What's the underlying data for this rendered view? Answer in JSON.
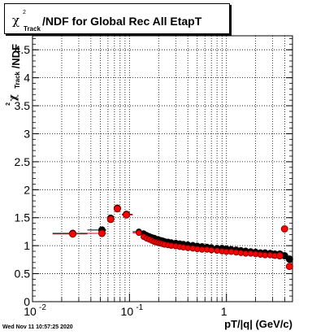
{
  "chart_data": {
    "type": "scatter",
    "title": "/NDF for Global Rec All EtapT",
    "title_symbol": "χ",
    "title_sup": "2",
    "title_sub": "Track",
    "xlabel": "pT/|q| (GeV/c)",
    "ylabel": "/NDF",
    "ylabel_symbol": "χ",
    "ylabel_sup": "2",
    "ylabel_sub": "Track",
    "xscale": "log",
    "xlim": [
      0.01,
      4.8
    ],
    "ylim": [
      0,
      4.75
    ],
    "grid": true,
    "x_ticks": [
      {
        "value": 0.01,
        "base": "10",
        "exp": "-2"
      },
      {
        "value": 0.1,
        "base": "10",
        "exp": "-1"
      },
      {
        "value": 1,
        "base": "1",
        "exp": ""
      }
    ],
    "y_ticks": [
      "0",
      "0.5",
      "1",
      "1.5",
      "2",
      "2.5",
      "3",
      "3.5",
      "4",
      "4.5"
    ],
    "series": [
      {
        "color": "#000000",
        "x": [
          0.026,
          0.052,
          0.064,
          0.075,
          0.093,
          0.125,
          0.14,
          0.15,
          0.16,
          0.17,
          0.18,
          0.19,
          0.2,
          0.21,
          0.22,
          0.23,
          0.25,
          0.27,
          0.3,
          0.33,
          0.36,
          0.4,
          0.45,
          0.5,
          0.56,
          0.63,
          0.7,
          0.8,
          0.9,
          1.0,
          1.12,
          1.26,
          1.41,
          1.58,
          1.78,
          2.0,
          2.24,
          2.5,
          2.82,
          3.16,
          3.55,
          3.98,
          4.47
        ],
        "y": [
          1.22,
          1.28,
          1.49,
          1.67,
          1.56,
          1.25,
          1.22,
          1.19,
          1.17,
          1.15,
          1.14,
          1.12,
          1.11,
          1.1,
          1.09,
          1.08,
          1.07,
          1.06,
          1.05,
          1.04,
          1.03,
          1.02,
          1.01,
          1.0,
          0.99,
          0.98,
          0.97,
          0.96,
          0.96,
          0.95,
          0.94,
          0.93,
          0.92,
          0.91,
          0.9,
          0.89,
          0.88,
          0.88,
          0.87,
          0.86,
          0.85,
          0.82,
          0.76
        ]
      },
      {
        "color": "#ff0000",
        "x": [
          0.026,
          0.052,
          0.064,
          0.075,
          0.093,
          0.125,
          0.14,
          0.15,
          0.16,
          0.17,
          0.18,
          0.19,
          0.2,
          0.21,
          0.22,
          0.23,
          0.25,
          0.27,
          0.3,
          0.33,
          0.36,
          0.4,
          0.45,
          0.5,
          0.56,
          0.63,
          0.7,
          0.8,
          0.9,
          1.0,
          1.12,
          1.26,
          1.41,
          1.58,
          1.78,
          2.0,
          2.24,
          2.5,
          2.82,
          3.16,
          3.55,
          3.98,
          4.47
        ],
        "y": [
          1.21,
          1.22,
          1.47,
          1.66,
          1.55,
          1.23,
          1.16,
          1.13,
          1.11,
          1.09,
          1.07,
          1.06,
          1.05,
          1.04,
          1.03,
          1.02,
          1.01,
          1.0,
          0.99,
          0.98,
          0.97,
          0.96,
          0.95,
          0.94,
          0.93,
          0.93,
          0.92,
          0.91,
          0.9,
          0.89,
          0.89,
          0.88,
          0.87,
          0.86,
          0.86,
          0.85,
          0.84,
          0.83,
          0.83,
          0.82,
          0.82,
          1.3,
          0.63
        ]
      }
    ]
  },
  "timestamp": "Wed Nov 11 10:57:25 2020"
}
